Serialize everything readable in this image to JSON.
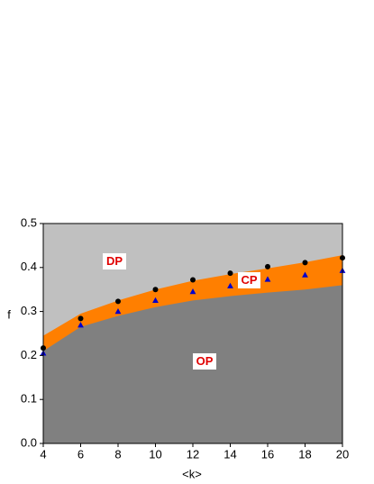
{
  "chart_data": {
    "type": "band-scatter",
    "x_label": "<k>",
    "y_label": "f",
    "x": [
      4,
      6,
      8,
      10,
      12,
      14,
      16,
      18,
      20
    ],
    "xlim": [
      4,
      20
    ],
    "xticks": [
      4,
      6,
      8,
      10,
      12,
      14,
      16,
      18,
      20
    ],
    "ylim": [
      0,
      0.5
    ],
    "yticks": [
      {
        "value": 0,
        "label": "0.0"
      },
      0.1,
      0.2,
      0.3,
      0.4,
      0.5
    ],
    "background_color": "#c0c0c0",
    "band": {
      "color": "#ff7f00",
      "upper": [
        0.245,
        0.295,
        0.325,
        0.35,
        0.37,
        0.385,
        0.398,
        0.412,
        0.428
      ],
      "lower": [
        0.21,
        0.265,
        0.29,
        0.31,
        0.325,
        0.335,
        0.343,
        0.35,
        0.36
      ],
      "below_color": "#808080"
    },
    "series": [
      {
        "marker": "circle",
        "color": "#000000",
        "values": [
          0.217,
          0.284,
          0.323,
          0.35,
          0.372,
          0.387,
          0.402,
          0.411,
          0.422
        ]
      },
      {
        "marker": "triangle",
        "color": "#0000cc",
        "values": [
          0.205,
          0.269,
          0.3,
          0.325,
          0.345,
          0.358,
          0.373,
          0.383,
          0.393
        ]
      }
    ],
    "annotations": [
      "DP",
      "CP",
      "OP"
    ]
  }
}
